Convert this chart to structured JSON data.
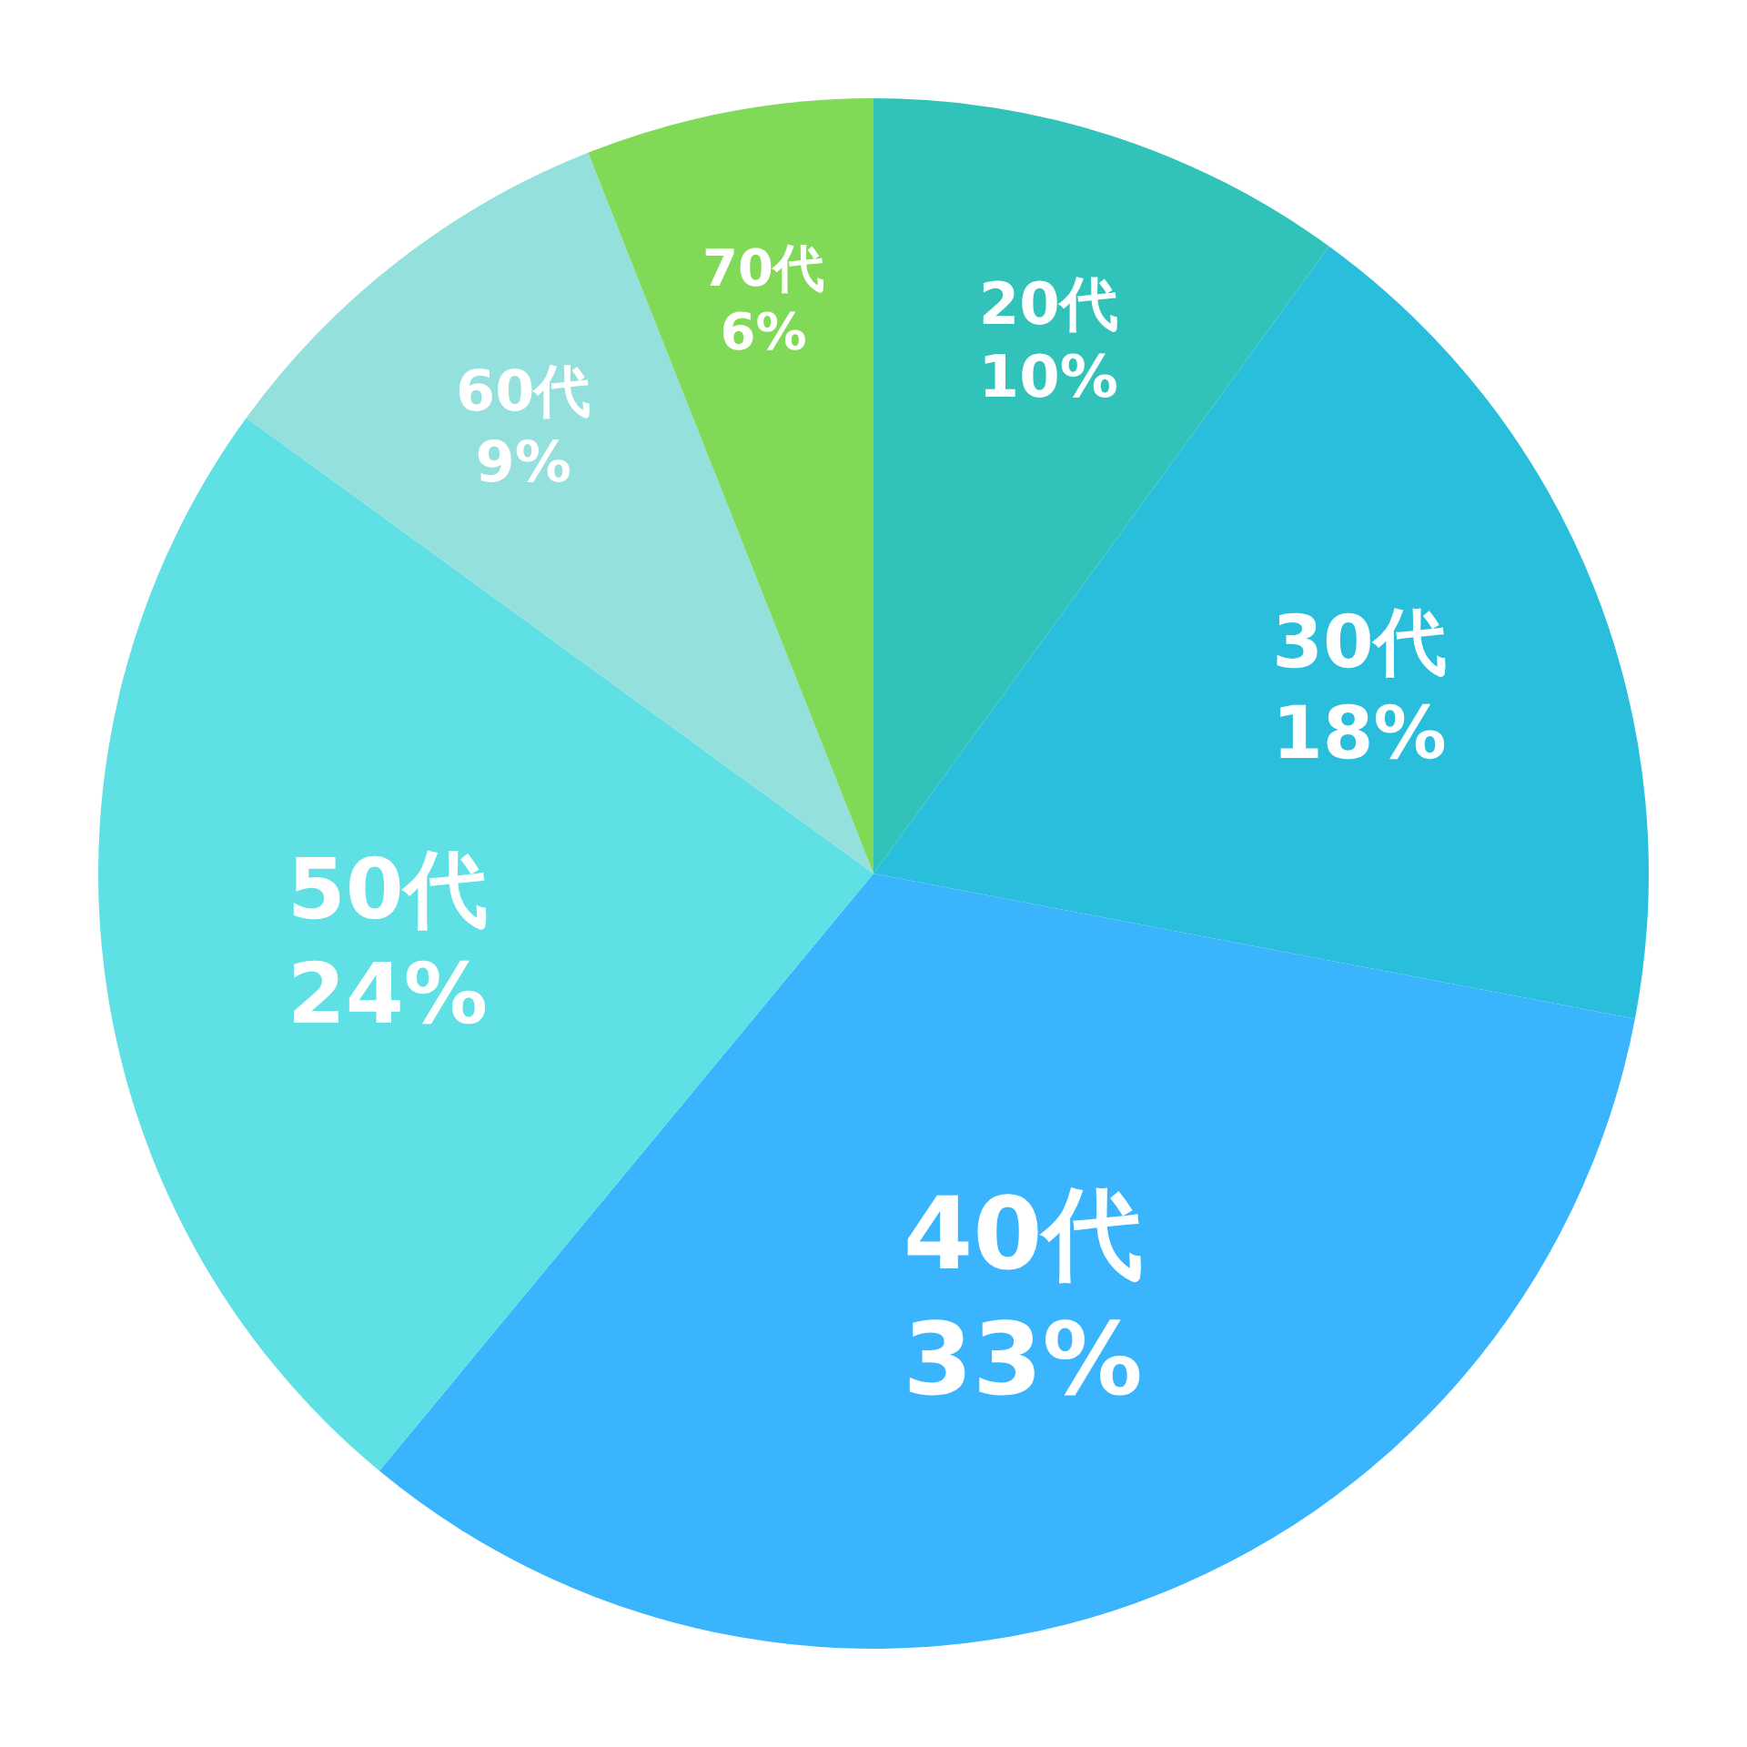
{
  "chart_data": {
    "type": "pie",
    "categories": [
      "20代",
      "30代",
      "40代",
      "50代",
      "60代",
      "70代"
    ],
    "values": [
      10,
      18,
      33,
      24,
      9,
      6
    ],
    "value_labels": [
      "10%",
      "18%",
      "33%",
      "24%",
      "9%",
      "6%"
    ],
    "colors": [
      "#31c3b9",
      "#28bedc",
      "#3bb4fe",
      "#5ee0e4",
      "#93e0dc",
      "#80d957"
    ]
  }
}
